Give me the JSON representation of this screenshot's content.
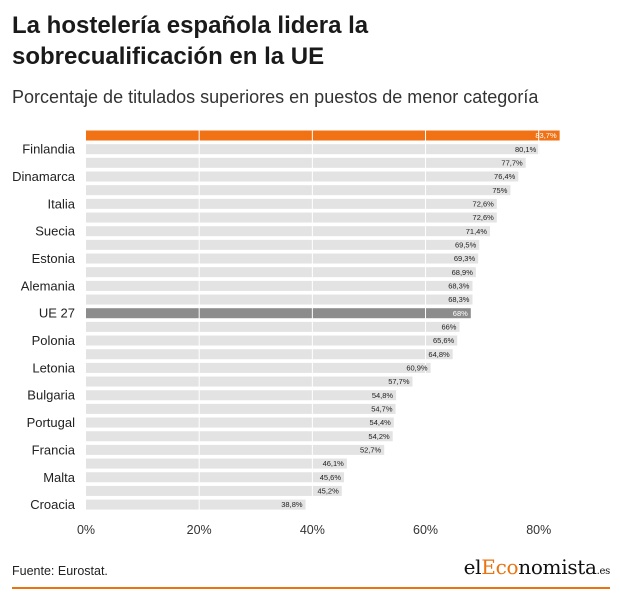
{
  "header": {
    "title": "La hostelería española lidera la sobrecualificación en la UE",
    "subtitle": "Porcentaje de titulados superiores en puestos de menor categoría"
  },
  "footer": {
    "source": "Fuente: Eurostat.",
    "brand_prefix": "el",
    "brand_accent": "Eco",
    "brand_suffix": "nomista",
    "brand_tld": ".es"
  },
  "colors": {
    "highlight": "#f07214",
    "average": "#8c8c8c",
    "bar": "#e3e3e3",
    "grid": "#ffffff"
  },
  "chart_data": {
    "type": "bar",
    "orientation": "horizontal",
    "xlim": [
      0,
      85
    ],
    "xticks": [
      0,
      20,
      40,
      60,
      80
    ],
    "xtick_labels": [
      "0%",
      "20%",
      "40%",
      "60%",
      "80%"
    ],
    "categories": [
      "",
      "Finlandia",
      "",
      "Dinamarca",
      "",
      "Italia",
      "",
      "Suecia",
      "",
      "Estonia",
      "",
      "Alemania",
      "",
      "UE 27",
      "",
      "Polonia",
      "",
      "Letonia",
      "",
      "Bulgaria",
      "",
      "Portugal",
      "",
      "Francia",
      "",
      "Malta",
      "",
      "Croacia"
    ],
    "values": [
      83.7,
      80.1,
      77.7,
      76.4,
      75,
      72.6,
      72.6,
      71.4,
      69.5,
      69.3,
      68.9,
      68.3,
      68.3,
      68,
      66,
      65.6,
      64.8,
      60.9,
      57.7,
      54.8,
      54.7,
      54.4,
      54.2,
      52.7,
      46.1,
      45.6,
      45.2,
      38.8
    ],
    "value_labels": [
      "83,7%",
      "80,1%",
      "77,7%",
      "76,4%",
      "75%",
      "72,6%",
      "72,6%",
      "71,4%",
      "69,5%",
      "69,3%",
      "68,9%",
      "68,3%",
      "68,3%",
      "68%",
      "66%",
      "65,6%",
      "64,8%",
      "60,9%",
      "57,7%",
      "54,8%",
      "54,7%",
      "54,4%",
      "54,2%",
      "52,7%",
      "46,1%",
      "45,6%",
      "45,2%",
      "38,8%"
    ],
    "highlight_index": 0,
    "average_index": 13
  }
}
